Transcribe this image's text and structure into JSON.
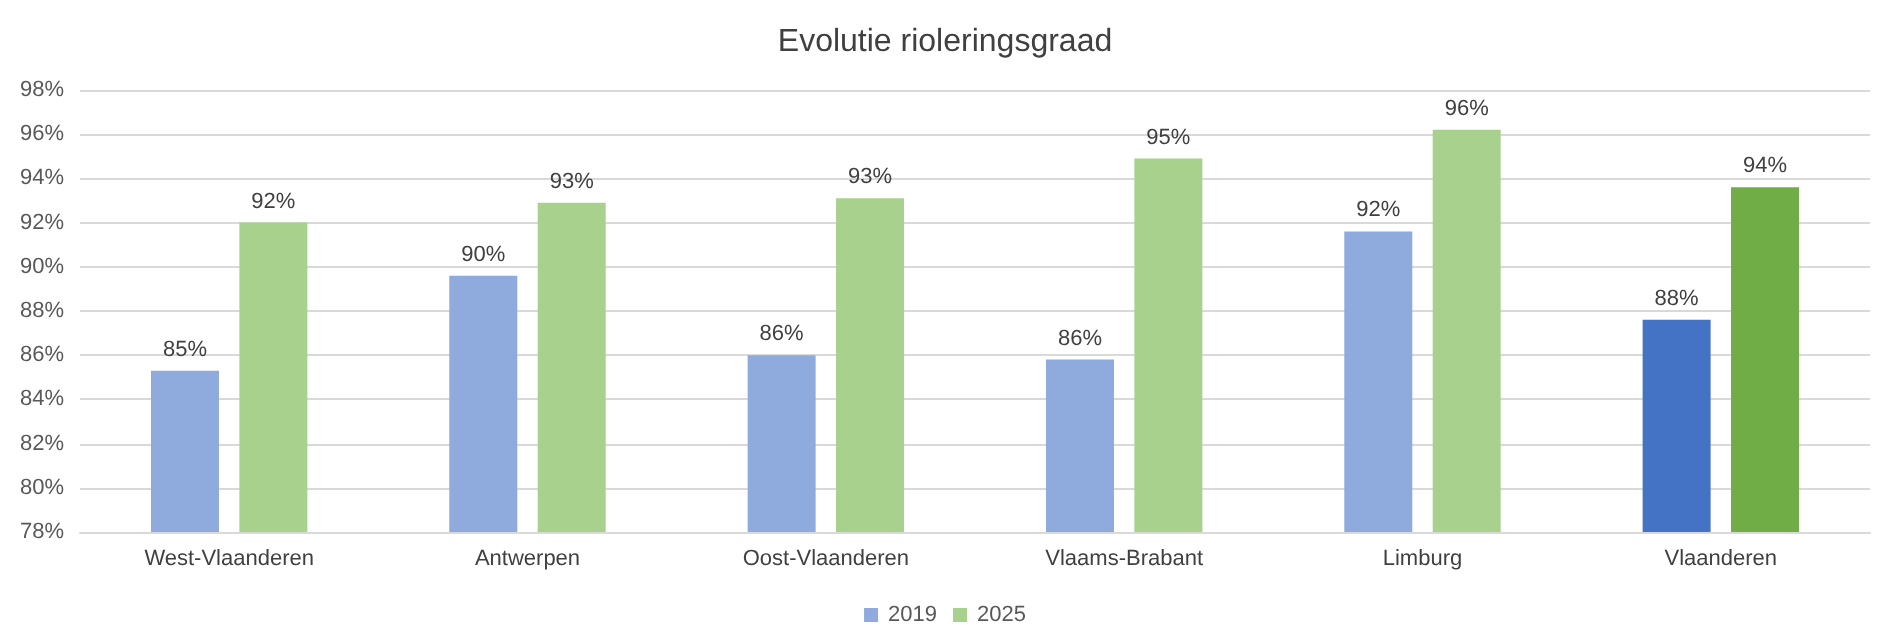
{
  "chart_data": {
    "type": "bar",
    "title": "Evolutie rioleringsgraad",
    "categories": [
      "West-Vlaanderen",
      "Antwerpen",
      "Oost-Vlaanderen",
      "Vlaams-Brabant",
      "Limburg",
      "Vlaanderen"
    ],
    "series": [
      {
        "name": "2019",
        "color": "#8faadc",
        "colors": [
          "#8faadc",
          "#8faadc",
          "#8faadc",
          "#8faadc",
          "#8faadc",
          "#4472c4"
        ],
        "values": [
          85.3,
          89.6,
          86.0,
          85.8,
          91.6,
          87.6
        ],
        "value_labels": [
          "85%",
          "90%",
          "86%",
          "86%",
          "92%",
          "88%"
        ]
      },
      {
        "name": "2025",
        "color": "#a9d18e",
        "colors": [
          "#a9d18e",
          "#a9d18e",
          "#a9d18e",
          "#a9d18e",
          "#a9d18e",
          "#70ad47"
        ],
        "values": [
          92.0,
          92.9,
          93.1,
          94.9,
          96.2,
          93.6
        ],
        "value_labels": [
          "92%",
          "93%",
          "93%",
          "95%",
          "96%",
          "94%"
        ]
      }
    ],
    "ylim": [
      78,
      98
    ],
    "yticks": [
      {
        "value": 78,
        "label": "78%"
      },
      {
        "value": 80,
        "label": "80%"
      },
      {
        "value": 82,
        "label": "82%"
      },
      {
        "value": 84,
        "label": "84%"
      },
      {
        "value": 86,
        "label": "86%"
      },
      {
        "value": 88,
        "label": "88%"
      },
      {
        "value": 90,
        "label": "90%"
      },
      {
        "value": 92,
        "label": "92%"
      },
      {
        "value": 94,
        "label": "94%"
      },
      {
        "value": 96,
        "label": "96%"
      },
      {
        "value": 98,
        "label": "98%"
      }
    ],
    "grid": "y",
    "legend": "bottom"
  }
}
